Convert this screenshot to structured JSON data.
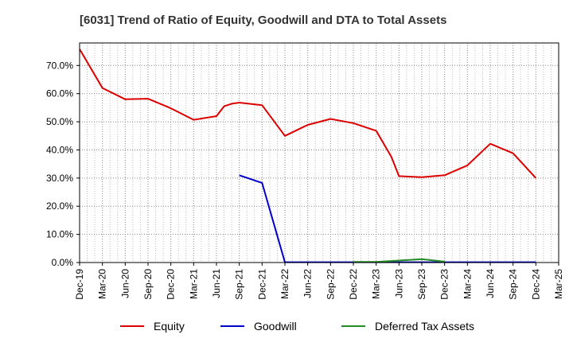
{
  "chart_data": {
    "type": "line",
    "title": "[6031]  Trend of Ratio of Equity, Goodwill and DTA to Total Assets",
    "xlabel": "",
    "ylabel": "",
    "x_ticks": [
      "Dec-19",
      "Mar-20",
      "Jun-20",
      "Sep-20",
      "Dec-20",
      "Mar-21",
      "Jun-21",
      "Sep-21",
      "Dec-21",
      "Mar-22",
      "Jun-22",
      "Sep-22",
      "Dec-22",
      "Mar-23",
      "Jun-23",
      "Sep-23",
      "Dec-23",
      "Mar-24",
      "Jun-24",
      "Sep-24",
      "Dec-24",
      "Mar-25"
    ],
    "y_ticks": [
      "0.0%",
      "10.0%",
      "20.0%",
      "30.0%",
      "40.0%",
      "50.0%",
      "60.0%",
      "70.0%"
    ],
    "ylim": [
      0,
      78
    ],
    "grid": true,
    "legend_position": "bottom",
    "series": [
      {
        "name": "Equity",
        "color": "#dd0000",
        "points": [
          {
            "x": "Dec-19",
            "y": 75.8
          },
          {
            "x": "Mar-20",
            "y": 62.0
          },
          {
            "x": "Jun-20",
            "y": 58.0
          },
          {
            "x": "Sep-20",
            "y": 58.2
          },
          {
            "x": "Dec-20",
            "y": 54.8
          },
          {
            "x": "Mar-21",
            "y": 50.7
          },
          {
            "x": "Jun-21",
            "y": 52.0
          },
          {
            "x": "Jul-21",
            "y": 55.5
          },
          {
            "x": "Aug-21",
            "y": 56.4
          },
          {
            "x": "Sep-21",
            "y": 56.8
          },
          {
            "x": "Dec-21",
            "y": 55.9
          },
          {
            "x": "Mar-22",
            "y": 45.0
          },
          {
            "x": "Jun-22",
            "y": 48.9
          },
          {
            "x": "Sep-22",
            "y": 51.0
          },
          {
            "x": "Dec-22",
            "y": 49.5
          },
          {
            "x": "Mar-23",
            "y": 46.8
          },
          {
            "x": "May-23",
            "y": 37.5
          },
          {
            "x": "Jun-23",
            "y": 30.7
          },
          {
            "x": "Sep-23",
            "y": 30.3
          },
          {
            "x": "Dec-23",
            "y": 31.0
          },
          {
            "x": "Mar-24",
            "y": 34.5
          },
          {
            "x": "Jun-24",
            "y": 42.2
          },
          {
            "x": "Sep-24",
            "y": 38.8
          },
          {
            "x": "Dec-24",
            "y": 30.0
          }
        ]
      },
      {
        "name": "Goodwill",
        "color": "#0000cc",
        "points": [
          {
            "x": "Sep-21",
            "y": 31.0
          },
          {
            "x": "Dec-21",
            "y": 28.3
          },
          {
            "x": "Mar-22",
            "y": 0.1
          },
          {
            "x": "Jun-22",
            "y": 0.1
          },
          {
            "x": "Sep-22",
            "y": 0.1
          },
          {
            "x": "Dec-22",
            "y": 0.1
          },
          {
            "x": "Mar-23",
            "y": 0.1
          },
          {
            "x": "Jun-23",
            "y": 0.1
          },
          {
            "x": "Sep-23",
            "y": 0.1
          },
          {
            "x": "Dec-23",
            "y": 0.1
          },
          {
            "x": "Mar-24",
            "y": 0.1
          },
          {
            "x": "Jun-24",
            "y": 0.1
          },
          {
            "x": "Sep-24",
            "y": 0.1
          },
          {
            "x": "Dec-24",
            "y": 0.1
          }
        ]
      },
      {
        "name": "Deferred Tax Assets",
        "color": "#228b22",
        "points": [
          {
            "x": "Dec-22",
            "y": 0.2
          },
          {
            "x": "Mar-23",
            "y": 0.2
          },
          {
            "x": "Jun-23",
            "y": 0.7
          },
          {
            "x": "Sep-23",
            "y": 1.2
          },
          {
            "x": "Dec-23",
            "y": 0.3
          }
        ]
      }
    ]
  }
}
